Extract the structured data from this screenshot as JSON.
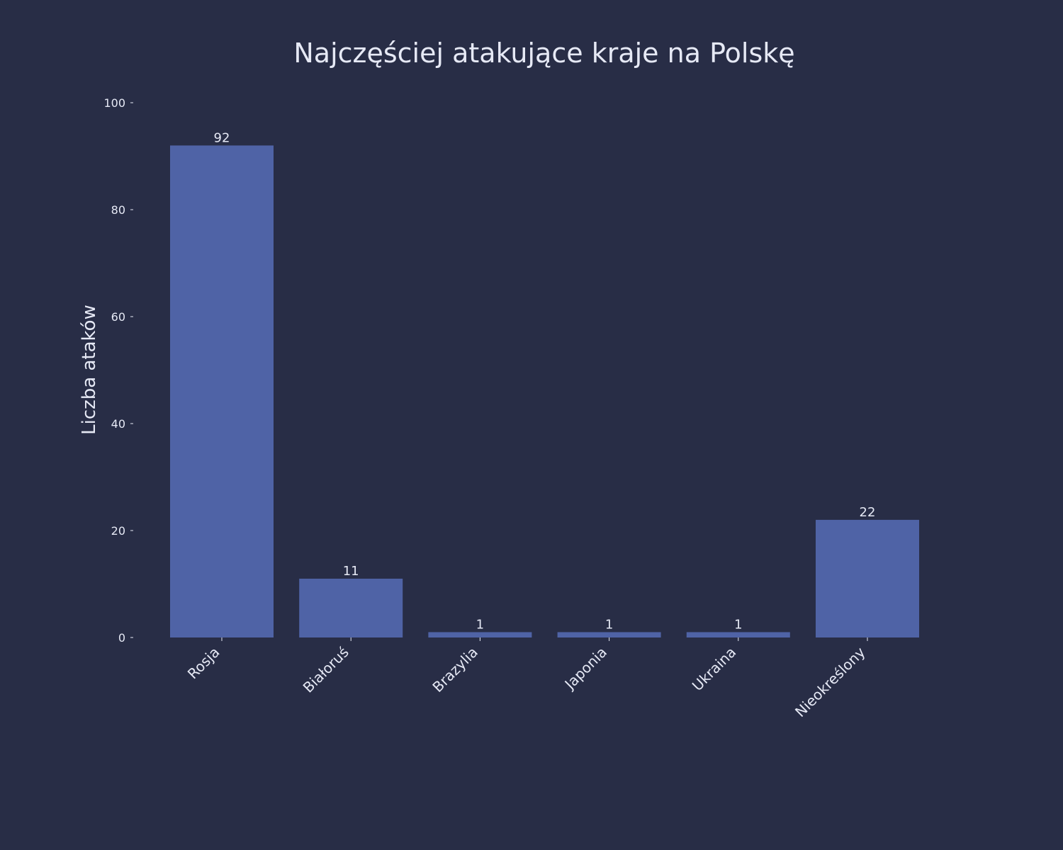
{
  "chart_data": {
    "type": "bar",
    "title": "Najczęściej atakujące kraje na Polskę",
    "xlabel": "",
    "ylabel": "Liczba ataków",
    "categories": [
      "Rosja",
      "Białoruś",
      "Brazylia",
      "Japonia",
      "Ukraina",
      "Nieokreślony"
    ],
    "values": [
      92,
      11,
      1,
      1,
      1,
      22
    ],
    "data_labels": [
      "92",
      "11",
      "1",
      "1",
      "1",
      "22"
    ],
    "ylim": [
      0,
      100
    ],
    "yticks": [
      0,
      20,
      40,
      60,
      80,
      100
    ],
    "ytick_labels": [
      "0",
      "20",
      "40",
      "60",
      "80",
      "100"
    ],
    "grid": false,
    "legend": "none"
  },
  "colors": {
    "background": "#282d46",
    "bar": "#4f63a6",
    "text": "#e6e9f5"
  }
}
